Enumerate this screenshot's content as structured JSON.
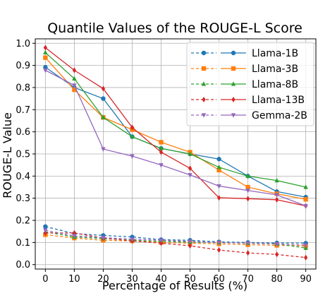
{
  "chart_data": {
    "type": "line",
    "title": "Quantile Values of the ROUGE-L Score",
    "xlabel": "Percentage of Results (%)",
    "ylabel": "ROUGE-L Value",
    "x": [
      0,
      10,
      20,
      30,
      40,
      50,
      60,
      70,
      80,
      90
    ],
    "xlim": [
      -3.5,
      93.5
    ],
    "ylim": [
      -0.02,
      1.02
    ],
    "yticks": [
      "0.0",
      "0.1",
      "0.2",
      "0.3",
      "0.4",
      "0.5",
      "0.6",
      "0.7",
      "0.8",
      "0.9",
      "1.0"
    ],
    "xticks": [
      "0",
      "10",
      "20",
      "30",
      "40",
      "50",
      "60",
      "70",
      "80",
      "90"
    ],
    "grid": true,
    "legend_position": "top-right",
    "series": [
      {
        "name": "Llama-1B",
        "color": "#1f77b4",
        "marker": "circle",
        "solid": [
          0.892,
          0.8,
          0.75,
          0.578,
          0.525,
          0.5,
          0.477,
          0.4,
          0.33,
          0.305
        ],
        "dashed": [
          0.172,
          0.14,
          0.132,
          0.125,
          0.113,
          0.11,
          0.103,
          0.1,
          0.098,
          0.097
        ]
      },
      {
        "name": "Llama-3B",
        "color": "#ff7f0e",
        "marker": "square",
        "solid": [
          0.935,
          0.79,
          0.665,
          0.61,
          0.553,
          0.508,
          0.427,
          0.35,
          0.32,
          0.295
        ],
        "dashed": [
          0.135,
          0.12,
          0.11,
          0.107,
          0.1,
          0.097,
          0.094,
          0.09,
          0.087,
          0.085
        ]
      },
      {
        "name": "Llama-8B",
        "color": "#2ca02c",
        "marker": "triangle-up",
        "solid": [
          0.958,
          0.84,
          0.665,
          0.578,
          0.525,
          0.5,
          0.44,
          0.4,
          0.38,
          0.35
        ],
        "dashed": [
          0.148,
          0.125,
          0.118,
          0.11,
          0.105,
          0.102,
          0.1,
          0.097,
          0.094,
          0.075
        ]
      },
      {
        "name": "Llama-13B",
        "color": "#d62728",
        "marker": "diamond",
        "solid": [
          0.98,
          0.878,
          0.795,
          0.62,
          0.508,
          0.435,
          0.302,
          0.298,
          0.293,
          0.265
        ],
        "dashed": [
          0.143,
          0.143,
          0.12,
          0.107,
          0.097,
          0.085,
          0.066,
          0.053,
          0.046,
          0.032
        ]
      },
      {
        "name": "Gemma-2B",
        "color": "#9467bd",
        "marker": "triangle-down",
        "solid": [
          0.878,
          0.81,
          0.522,
          0.49,
          0.45,
          0.405,
          0.355,
          0.335,
          0.315,
          0.265
        ],
        "dashed": [
          0.155,
          0.13,
          0.122,
          0.115,
          0.11,
          0.105,
          0.1,
          0.097,
          0.093,
          0.088
        ]
      }
    ]
  }
}
